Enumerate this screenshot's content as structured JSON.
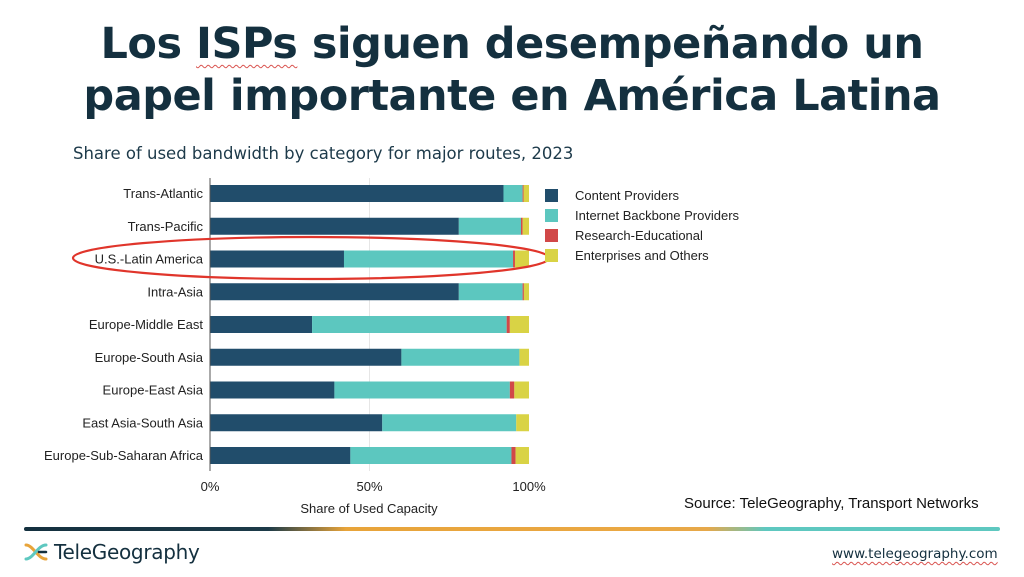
{
  "slide": {
    "title_line1_pre": "Los ",
    "title_line1_mark": "ISPs",
    "title_line1_post": " siguen desempeñando un",
    "title_line2": "papel importante en América Latina",
    "source": "Source: TeleGeography, Transport Networks",
    "brand": "TeleGeography",
    "url": "www.telegeography.com"
  },
  "colors": {
    "content_providers": "#214d6b",
    "backbone": "#5cc7bf",
    "research": "#d14848",
    "enterprises": "#d9d345",
    "highlight": "#e0352b",
    "brand_navy": "#14303f",
    "brand_orange": "#e8a43a",
    "brand_teal": "#5ec8c0"
  },
  "chart_data": {
    "type": "bar",
    "orientation": "horizontal",
    "stacked": true,
    "title": "Share of used bandwidth by category for major routes, 2023",
    "xlabel": "Share of Used Capacity",
    "ylabel": "",
    "xlim": [
      0,
      100
    ],
    "x_ticks": [
      "0%",
      "50%",
      "100%"
    ],
    "x_tick_values": [
      0,
      50,
      100
    ],
    "grid": "vertical at 50%",
    "legend_position": "right",
    "categories": [
      "Trans-Atlantic",
      "Trans-Pacific",
      "U.S.-Latin America",
      "Intra-Asia",
      "Europe-Middle East",
      "Europe-South Asia",
      "Europe-East Asia",
      "East Asia-South Asia",
      "Europe-Sub-Saharan Africa"
    ],
    "highlighted_category": "U.S.-Latin America",
    "series": [
      {
        "name": "Content Providers",
        "color_key": "content_providers",
        "values": [
          92,
          78,
          42,
          78,
          32,
          60,
          39,
          54,
          44
        ]
      },
      {
        "name": "Internet Backbone Providers",
        "color_key": "backbone",
        "values": [
          6,
          19.5,
          53,
          20,
          61,
          37,
          55,
          42,
          50.5
        ]
      },
      {
        "name": "Research-Educational",
        "color_key": "research",
        "values": [
          0.3,
          0.5,
          0.6,
          0.4,
          1,
          0,
          1.4,
          0,
          1.3
        ]
      },
      {
        "name": "Enterprises and Others",
        "color_key": "enterprises",
        "values": [
          1.7,
          2,
          4.4,
          1.6,
          6,
          3,
          4.6,
          4,
          4.2
        ]
      }
    ]
  }
}
